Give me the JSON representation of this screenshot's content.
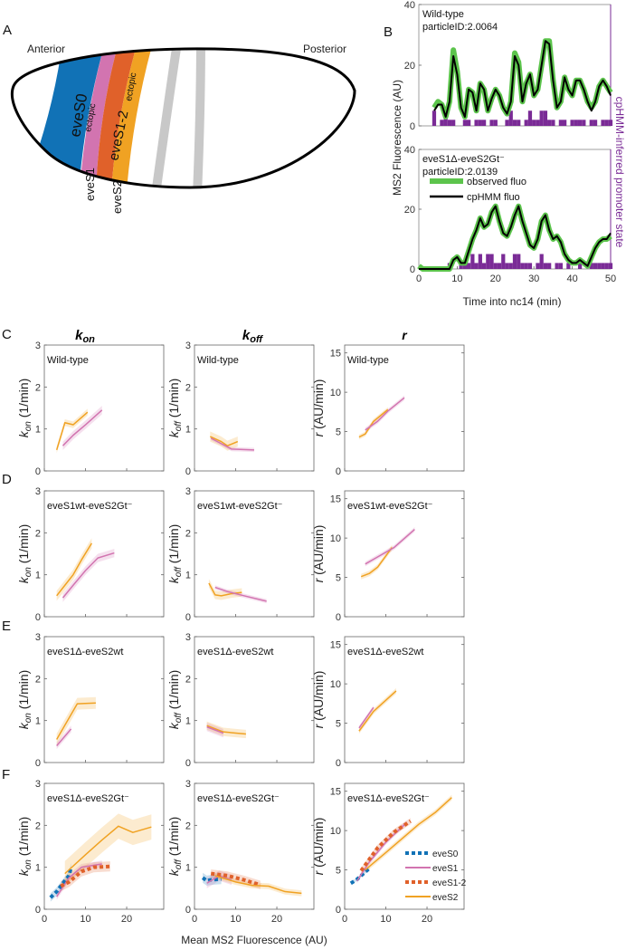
{
  "panel_labels": [
    "A",
    "B",
    "C",
    "D",
    "E",
    "F"
  ],
  "colors": {
    "eveS0": "#1172b6",
    "eveS1": "#d274b0",
    "eveS1_2": "#e0612a",
    "eveS2": "#f0a223",
    "observed": "#5cc44c",
    "cphmm": "#000000",
    "promoter": "#7a2b96",
    "grey_stripe": "#c8c8c8"
  },
  "panelA": {
    "anterior": "Anterior",
    "posterior": "Posterior",
    "eveS0": "eveS0",
    "eveS0_note": "ectopic",
    "eveS1_2": "eveS1-2",
    "eveS1_2_note": "ectopic",
    "eveS1": "eveS1",
    "eveS2": "eveS2"
  },
  "panelB": {
    "ylabel": "MS2 Fluorescence (AU)",
    "ylabel_right": "cpHMM-inferred promoter state",
    "xlabel": "Time into nc14 (min)",
    "legend": [
      "observed fluo",
      "cpHMM fluo"
    ]
  },
  "column_headers": [
    {
      "sym": "k",
      "sub": "on"
    },
    {
      "sym": "k",
      "sub": "off"
    },
    {
      "sym": "r",
      "sub": ""
    }
  ],
  "ylabels": [
    {
      "sym": "k",
      "sub": "on",
      "unit": " (1/min)"
    },
    {
      "sym": "k",
      "sub": "off",
      "unit": " (1/min)"
    },
    {
      "sym": "r",
      "sub": "",
      "unit": " (AU/min)"
    }
  ],
  "xlabel": "Mean MS2 Fluorescence (AU)",
  "chart_data": [
    {
      "type": "line",
      "panel": "B-top",
      "annotation": [
        "Wild-type",
        "particleID:2.0064"
      ],
      "xlim": [
        0,
        50
      ],
      "ylim": [
        0,
        40
      ],
      "yticks": [
        0,
        20,
        40
      ],
      "xticks": [],
      "time": [
        4,
        5,
        6,
        7,
        8,
        9,
        10,
        11,
        12,
        13,
        14,
        15,
        16,
        17,
        18,
        19,
        20,
        21,
        22,
        23,
        24,
        25,
        26,
        27,
        28,
        29,
        30,
        31,
        32,
        33,
        34,
        35,
        36,
        37,
        38,
        39,
        40,
        41,
        42,
        43,
        44,
        45,
        46,
        47,
        48,
        49,
        50
      ],
      "observed": [
        6,
        8,
        7,
        3,
        8,
        25,
        18,
        6,
        3,
        12,
        11,
        5,
        14,
        12,
        5,
        9,
        12,
        10,
        6,
        4,
        8,
        24,
        21,
        8,
        14,
        17,
        10,
        12,
        20,
        28,
        28,
        15,
        6,
        8,
        16,
        12,
        10,
        15,
        15,
        12,
        8,
        6,
        8,
        13,
        15,
        13,
        11
      ],
      "cphmm": [
        5,
        7,
        7,
        3,
        8,
        23,
        17,
        6,
        3,
        12,
        11,
        5,
        14,
        12,
        5,
        9,
        12,
        10,
        6,
        4,
        8,
        23,
        20,
        8,
        14,
        17,
        10,
        12,
        20,
        28,
        27,
        15,
        6,
        8,
        16,
        12,
        10,
        15,
        15,
        12,
        8,
        5,
        8,
        13,
        15,
        13,
        10
      ],
      "promoter_state": [
        2,
        0,
        1,
        2,
        1,
        1,
        0,
        0,
        1,
        1,
        0,
        1,
        1,
        1,
        0,
        1,
        1,
        0,
        0,
        1,
        2,
        1,
        1,
        0,
        1,
        2,
        1,
        1,
        2,
        2,
        1,
        1,
        0,
        1,
        1,
        0,
        1,
        1,
        1,
        1,
        0,
        1,
        1,
        0,
        1,
        1,
        1
      ]
    },
    {
      "type": "line",
      "panel": "B-bottom",
      "annotation": [
        "eveS1Δ-eveS2Gt⁻",
        "particleID:2.0139"
      ],
      "xlim": [
        0,
        50
      ],
      "ylim": [
        0,
        40
      ],
      "yticks": [
        0,
        20,
        40
      ],
      "xticks": [
        0,
        10,
        20,
        30,
        40,
        50
      ],
      "time": [
        0,
        1,
        2,
        3,
        4,
        5,
        6,
        7,
        8,
        9,
        10,
        11,
        12,
        13,
        14,
        15,
        16,
        17,
        18,
        19,
        20,
        21,
        22,
        23,
        24,
        25,
        26,
        27,
        28,
        29,
        30,
        31,
        32,
        33,
        34,
        35,
        36,
        37,
        38,
        39,
        40,
        41,
        42,
        43,
        44,
        45,
        46,
        47,
        48,
        49,
        50
      ],
      "observed": [
        1,
        0,
        0,
        0,
        0,
        0,
        0,
        0,
        0,
        3,
        4,
        2,
        2,
        6,
        10,
        13,
        17,
        14,
        15,
        19,
        21,
        16,
        12,
        11,
        14,
        18,
        21,
        16,
        12,
        8,
        7,
        10,
        16,
        18,
        13,
        10,
        11,
        9,
        5,
        3,
        2,
        2,
        3,
        2,
        1,
        4,
        7,
        9,
        10,
        10,
        11
      ],
      "cphmm": [
        0,
        0,
        0,
        0,
        0,
        0,
        0,
        0,
        0,
        3,
        4,
        2,
        2,
        6,
        10,
        13,
        17,
        14,
        15,
        19,
        21,
        16,
        12,
        11,
        14,
        18,
        21,
        16,
        12,
        8,
        7,
        10,
        16,
        18,
        13,
        10,
        11,
        9,
        5,
        3,
        2,
        2,
        3,
        2,
        1,
        4,
        7,
        9,
        10,
        10,
        12
      ],
      "promoter_state": [
        0,
        0,
        0,
        0,
        0,
        0,
        0,
        0,
        1,
        0,
        0,
        1,
        1,
        1,
        2,
        1,
        2,
        1,
        2,
        2,
        1,
        1,
        2,
        1,
        1,
        2,
        2,
        1,
        1,
        1,
        0,
        1,
        2,
        1,
        1,
        0,
        1,
        1,
        0,
        1,
        0,
        0,
        1,
        0,
        0,
        1,
        1,
        1,
        1,
        1,
        1
      ]
    },
    {
      "type": "line",
      "row": "C",
      "param": "kon",
      "annotation": "Wild-type",
      "xlim": [
        0,
        29
      ],
      "ylim": [
        0,
        3
      ],
      "yticks": [
        0,
        1,
        2,
        3
      ],
      "xticks": [
        0,
        10,
        20
      ],
      "series": [
        {
          "name": "eveS2",
          "x": [
            3,
            5,
            7,
            10.5
          ],
          "y": [
            0.5,
            1.15,
            1.1,
            1.4
          ],
          "band": 0.08
        },
        {
          "name": "eveS1",
          "x": [
            4.5,
            7,
            10,
            14
          ],
          "y": [
            0.6,
            0.85,
            1.1,
            1.45
          ],
          "band": 0.1
        }
      ]
    },
    {
      "type": "line",
      "row": "C",
      "param": "koff",
      "annotation": "Wild-type",
      "xlim": [
        0,
        29
      ],
      "ylim": [
        0,
        3
      ],
      "yticks": [
        0,
        1,
        2,
        3
      ],
      "xticks": [
        0,
        10,
        20
      ],
      "series": [
        {
          "name": "eveS2",
          "x": [
            3.8,
            6.5,
            8,
            10.5
          ],
          "y": [
            0.82,
            0.7,
            0.6,
            0.7
          ],
          "band": 0.12
        },
        {
          "name": "eveS1",
          "x": [
            4,
            6.5,
            9,
            14.5
          ],
          "y": [
            0.78,
            0.65,
            0.52,
            0.5
          ],
          "band": 0.05
        }
      ]
    },
    {
      "type": "line",
      "row": "C",
      "param": "r",
      "annotation": "Wild-type",
      "xlim": [
        0,
        29
      ],
      "ylim": [
        0,
        16
      ],
      "yticks": [
        0,
        5,
        10,
        15
      ],
      "xticks": [
        0,
        10,
        20
      ],
      "series": [
        {
          "name": "eveS2",
          "x": [
            3.5,
            5,
            7,
            10.5
          ],
          "y": [
            4.3,
            4.7,
            6.3,
            7.8
          ],
          "band": 0.3
        },
        {
          "name": "eveS1",
          "x": [
            5,
            8,
            10.5,
            14.5
          ],
          "y": [
            5.2,
            6.3,
            7.6,
            9.3
          ],
          "band": 0.3
        }
      ]
    },
    {
      "type": "line",
      "row": "D",
      "param": "kon",
      "annotation": "eveS1wt-eveS2Gt⁻",
      "xlim": [
        0,
        29
      ],
      "ylim": [
        0,
        3
      ],
      "yticks": [
        0,
        1,
        2,
        3
      ],
      "xticks": [
        0,
        10,
        20
      ],
      "series": [
        {
          "name": "eveS2",
          "x": [
            3,
            5,
            7,
            9,
            11.5
          ],
          "y": [
            0.5,
            0.75,
            1.0,
            1.35,
            1.75
          ],
          "band": 0.12
        },
        {
          "name": "eveS1",
          "x": [
            4.5,
            7,
            10,
            13,
            17
          ],
          "y": [
            0.45,
            0.75,
            1.1,
            1.4,
            1.52
          ],
          "band": 0.1
        }
      ]
    },
    {
      "type": "line",
      "row": "D",
      "param": "koff",
      "annotation": "eveS1wt-eveS2Gt⁻",
      "xlim": [
        0,
        29
      ],
      "ylim": [
        0,
        3
      ],
      "yticks": [
        0,
        1,
        2,
        3
      ],
      "xticks": [
        0,
        10,
        20
      ],
      "series": [
        {
          "name": "eveS2",
          "x": [
            3.5,
            5,
            6.5,
            9,
            11.5
          ],
          "y": [
            0.8,
            0.52,
            0.5,
            0.55,
            0.58
          ],
          "band": 0.1
        },
        {
          "name": "eveS1",
          "x": [
            5,
            8,
            12,
            17.5
          ],
          "y": [
            0.7,
            0.6,
            0.5,
            0.37
          ],
          "band": 0.05
        }
      ]
    },
    {
      "type": "line",
      "row": "D",
      "param": "r",
      "annotation": "eveS1wt-eveS2Gt⁻",
      "xlim": [
        0,
        29
      ],
      "ylim": [
        0,
        16
      ],
      "yticks": [
        0,
        5,
        10,
        15
      ],
      "xticks": [
        0,
        10,
        20
      ],
      "series": [
        {
          "name": "eveS2",
          "x": [
            4,
            6,
            8,
            11.5
          ],
          "y": [
            5.1,
            5.5,
            6.3,
            8.8
          ],
          "band": 0.35
        },
        {
          "name": "eveS1",
          "x": [
            5,
            8,
            12,
            17
          ],
          "y": [
            6.7,
            7.6,
            8.8,
            11.1
          ],
          "band": 0.3
        }
      ]
    },
    {
      "type": "line",
      "row": "E",
      "param": "kon",
      "annotation": "eveS1Δ-eveS2wt",
      "xlim": [
        0,
        29
      ],
      "ylim": [
        0,
        3
      ],
      "yticks": [
        0,
        1,
        2,
        3
      ],
      "xticks": [
        0,
        10,
        20
      ],
      "series": [
        {
          "name": "eveS2",
          "x": [
            3,
            8,
            12.5
          ],
          "y": [
            0.55,
            1.4,
            1.42
          ],
          "band": 0.14
        },
        {
          "name": "eveS1",
          "x": [
            3,
            6.5
          ],
          "y": [
            0.4,
            0.8
          ],
          "band": 0.08
        }
      ]
    },
    {
      "type": "line",
      "row": "E",
      "param": "koff",
      "annotation": "eveS1Δ-eveS2wt",
      "xlim": [
        0,
        29
      ],
      "ylim": [
        0,
        3
      ],
      "yticks": [
        0,
        1,
        2,
        3
      ],
      "xticks": [
        0,
        10,
        20
      ],
      "series": [
        {
          "name": "eveS2",
          "x": [
            3,
            7,
            12.5
          ],
          "y": [
            0.88,
            0.73,
            0.68
          ],
          "band": 0.1
        },
        {
          "name": "eveS1",
          "x": [
            3,
            7
          ],
          "y": [
            0.85,
            0.7
          ],
          "band": 0.1
        }
      ]
    },
    {
      "type": "line",
      "row": "E",
      "param": "r",
      "annotation": "eveS1Δ-eveS2wt",
      "xlim": [
        0,
        29
      ],
      "ylim": [
        0,
        16
      ],
      "yticks": [
        0,
        5,
        10,
        15
      ],
      "xticks": [
        0,
        10,
        20
      ],
      "series": [
        {
          "name": "eveS2",
          "x": [
            3.5,
            7,
            12.5
          ],
          "y": [
            4.0,
            6.5,
            9.1
          ],
          "band": 0.35
        },
        {
          "name": "eveS1",
          "x": [
            3.5,
            7
          ],
          "y": [
            4.4,
            7.0
          ],
          "band": 0.25
        }
      ]
    },
    {
      "type": "line",
      "row": "F",
      "param": "kon",
      "annotation": "eveS1Δ-eveS2Gt⁻",
      "xlim": [
        0,
        29
      ],
      "ylim": [
        0,
        3
      ],
      "yticks": [
        0,
        1,
        2,
        3
      ],
      "xticks": [
        0,
        10,
        20
      ],
      "show_xticklabels": true,
      "series": [
        {
          "name": "eveS0",
          "x": [
            1.5,
            3,
            4,
            5,
            6,
            6.5
          ],
          "y": [
            0.28,
            0.42,
            0.55,
            0.68,
            0.8,
            1.0
          ],
          "band": 0.1
        },
        {
          "name": "eveS1",
          "x": [
            3,
            6,
            9,
            14
          ],
          "y": [
            0.3,
            0.75,
            1.0,
            1.08
          ],
          "band": 0.08
        },
        {
          "name": "eveS1-2",
          "x": [
            4,
            6,
            9,
            12,
            16
          ],
          "y": [
            0.55,
            0.65,
            0.9,
            1.0,
            1.02
          ],
          "band": 0.12
        },
        {
          "name": "eveS2",
          "x": [
            5,
            10,
            14,
            18,
            21.5,
            26
          ],
          "y": [
            0.85,
            1.3,
            1.65,
            1.98,
            1.83,
            1.96
          ],
          "band": 0.3
        }
      ]
    },
    {
      "type": "line",
      "row": "F",
      "param": "koff",
      "annotation": "eveS1Δ-eveS2Gt⁻",
      "xlim": [
        0,
        29
      ],
      "ylim": [
        0,
        3
      ],
      "yticks": [
        0,
        1,
        2,
        3
      ],
      "xticks": [
        0,
        10,
        20
      ],
      "show_xticklabels": true,
      "series": [
        {
          "name": "eveS0",
          "x": [
            2,
            3,
            4,
            6.5
          ],
          "y": [
            0.75,
            0.68,
            0.7,
            0.72
          ],
          "band": 0.12
        },
        {
          "name": "eveS1",
          "x": [
            3,
            6,
            9
          ],
          "y": [
            0.62,
            0.8,
            0.7
          ],
          "band": 0.12
        },
        {
          "name": "eveS1-2",
          "x": [
            4,
            8,
            12,
            16
          ],
          "y": [
            0.85,
            0.8,
            0.7,
            0.58
          ],
          "band": 0.1
        },
        {
          "name": "eveS2",
          "x": [
            5,
            10,
            14,
            18,
            22,
            26
          ],
          "y": [
            0.8,
            0.65,
            0.57,
            0.55,
            0.42,
            0.38
          ],
          "band": 0.07
        }
      ]
    },
    {
      "type": "line",
      "row": "F",
      "param": "r",
      "annotation": "eveS1Δ-eveS2Gt⁻",
      "xlim": [
        0,
        29
      ],
      "ylim": [
        0,
        16
      ],
      "yticks": [
        0,
        5,
        10,
        15
      ],
      "xticks": [
        0,
        10,
        20
      ],
      "show_xticklabels": true,
      "legend": "bottom-right",
      "series": [
        {
          "name": "eveS0",
          "x": [
            1.5,
            3,
            4.5,
            6
          ],
          "y": [
            3.3,
            3.8,
            4.5,
            5.2
          ],
          "band": 0.2
        },
        {
          "name": "eveS1",
          "x": [
            3,
            6,
            10,
            15
          ],
          "y": [
            3.6,
            6,
            8.5,
            11
          ],
          "band": 0.3
        },
        {
          "name": "eveS1-2",
          "x": [
            4,
            8,
            12,
            16
          ],
          "y": [
            4.9,
            7.8,
            9.8,
            11.2
          ],
          "band": 0.4
        },
        {
          "name": "eveS2",
          "x": [
            5,
            10,
            14,
            18,
            22,
            26
          ],
          "y": [
            5,
            7.2,
            9,
            10.8,
            12.3,
            14.2
          ],
          "band": 0.35
        }
      ]
    }
  ]
}
